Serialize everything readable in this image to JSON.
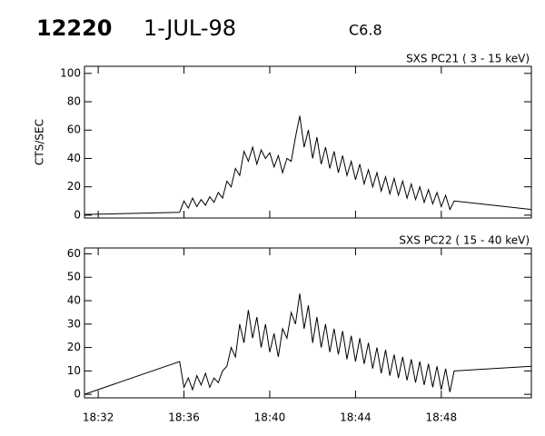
{
  "header": {
    "id": "12220",
    "date": "1-JUL-98",
    "class": "C6.8"
  },
  "chart_data": [
    {
      "type": "line",
      "title": "SXS PC21  (  3 - 15 keV)",
      "ylabel": "CTS/SEC",
      "xlim": [
        31.36,
        52.2
      ],
      "xticks": [
        32,
        36,
        40,
        44,
        48
      ],
      "ylim": [
        -2,
        105
      ],
      "yticks": [
        0,
        20,
        40,
        60,
        80,
        100
      ],
      "color": "#000000",
      "x": [
        31.36,
        35.8,
        36.0,
        36.2,
        36.4,
        36.6,
        36.8,
        37.0,
        37.2,
        37.4,
        37.6,
        37.8,
        38.0,
        38.2,
        38.4,
        38.6,
        38.8,
        39.0,
        39.2,
        39.4,
        39.6,
        39.8,
        40.0,
        40.2,
        40.4,
        40.6,
        40.8,
        41.0,
        41.2,
        41.4,
        41.6,
        41.8,
        42.0,
        42.2,
        42.4,
        42.6,
        42.8,
        43.0,
        43.2,
        43.4,
        43.6,
        43.8,
        44.0,
        44.2,
        44.4,
        44.6,
        44.8,
        45.0,
        45.2,
        45.4,
        45.6,
        45.8,
        46.0,
        46.2,
        46.4,
        46.6,
        46.8,
        47.0,
        47.2,
        47.4,
        47.6,
        47.8,
        48.0,
        48.2,
        48.4,
        48.6,
        52.2
      ],
      "values": [
        0.5,
        2,
        10,
        5,
        12,
        6,
        11,
        7,
        13,
        9,
        16,
        12,
        24,
        20,
        33,
        28,
        45,
        38,
        48,
        36,
        46,
        40,
        44,
        34,
        42,
        30,
        40,
        38,
        55,
        70,
        48,
        60,
        40,
        55,
        36,
        48,
        33,
        45,
        30,
        42,
        28,
        38,
        25,
        36,
        22,
        32,
        20,
        30,
        17,
        27,
        15,
        26,
        14,
        24,
        12,
        22,
        11,
        20,
        9,
        18,
        8,
        16,
        6,
        14,
        4,
        10,
        4
      ]
    },
    {
      "type": "line",
      "title": "SXS PC22  ( 15 - 40 keV)",
      "xlim": [
        31.36,
        52.2
      ],
      "xticks": [
        {
          "value": 32,
          "label": "18:32"
        },
        {
          "value": 36,
          "label": "18:36"
        },
        {
          "value": 40,
          "label": "18:40"
        },
        {
          "value": 44,
          "label": "18:44"
        },
        {
          "value": 48,
          "label": "18:48"
        }
      ],
      "ylim": [
        -1.5,
        62.5
      ],
      "yticks": [
        0,
        10,
        20,
        30,
        40,
        50,
        60
      ],
      "color": "#000000",
      "x": [
        31.36,
        35.8,
        36.0,
        36.2,
        36.4,
        36.6,
        36.8,
        37.0,
        37.2,
        37.4,
        37.6,
        37.8,
        38.0,
        38.2,
        38.4,
        38.6,
        38.8,
        39.0,
        39.2,
        39.4,
        39.6,
        39.8,
        40.0,
        40.2,
        40.4,
        40.6,
        40.8,
        41.0,
        41.2,
        41.4,
        41.6,
        41.8,
        42.0,
        42.2,
        42.4,
        42.6,
        42.8,
        43.0,
        43.2,
        43.4,
        43.6,
        43.8,
        44.0,
        44.2,
        44.4,
        44.6,
        44.8,
        45.0,
        45.2,
        45.4,
        45.6,
        45.8,
        46.0,
        46.2,
        46.4,
        46.6,
        46.8,
        47.0,
        47.2,
        47.4,
        47.6,
        47.8,
        48.0,
        48.2,
        48.4,
        48.6,
        52.2
      ],
      "values": [
        0,
        14,
        3,
        7,
        2,
        8,
        4,
        9,
        3,
        7,
        5,
        10,
        12,
        20,
        16,
        30,
        22,
        36,
        24,
        33,
        20,
        30,
        18,
        26,
        16,
        28,
        24,
        35,
        30,
        43,
        28,
        38,
        22,
        33,
        20,
        30,
        18,
        28,
        17,
        27,
        15,
        25,
        14,
        24,
        13,
        22,
        11,
        20,
        9,
        19,
        8,
        17,
        7,
        16,
        6,
        15,
        5,
        14,
        4,
        13,
        3,
        12,
        2,
        11,
        1,
        10,
        12
      ]
    }
  ]
}
